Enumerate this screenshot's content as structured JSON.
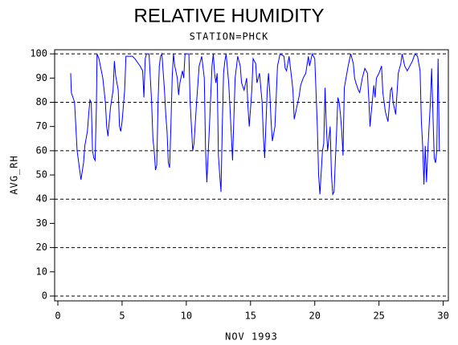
{
  "chart_data": {
    "type": "line",
    "title": "RELATIVE HUMIDITY",
    "subtitle": "STATION=PHCK",
    "x_label": "NOV 1993",
    "y_label": "AVG_RH",
    "xlim": [
      -0.25,
      30.4
    ],
    "ylim": [
      -2,
      101.7
    ],
    "xticks": [
      0,
      5,
      10,
      15,
      20,
      25,
      30
    ],
    "yticks": [
      0,
      10,
      20,
      30,
      40,
      50,
      60,
      70,
      80,
      90,
      100
    ],
    "ygrid": [
      0,
      20,
      40,
      60,
      80,
      100
    ],
    "series": [
      {
        "color": "#0000ff",
        "x": [
          1.0,
          1.05,
          1.3,
          1.5,
          1.7,
          1.8,
          2.0,
          2.1,
          2.3,
          2.4,
          2.5,
          2.6,
          2.7,
          2.8,
          2.9,
          3.0,
          3.05,
          3.2,
          3.5,
          3.7,
          3.8,
          3.9,
          4.1,
          4.3,
          4.4,
          4.5,
          4.7,
          4.8,
          4.9,
          5.0,
          5.2,
          5.3,
          5.5,
          5.8,
          6.0,
          6.4,
          6.6,
          6.7,
          6.8,
          6.9,
          7.1,
          7.3,
          7.4,
          7.5,
          7.6,
          7.7,
          7.8,
          7.9,
          8.0,
          8.1,
          8.3,
          8.4,
          8.5,
          8.6,
          8.7,
          8.8,
          8.9,
          9.0,
          9.1,
          9.3,
          9.4,
          9.5,
          9.7,
          9.8,
          9.9,
          10.2,
          10.3,
          10.4,
          10.5,
          10.6,
          10.8,
          11.0,
          11.2,
          11.4,
          11.5,
          11.6,
          11.8,
          12.0,
          12.1,
          12.2,
          12.3,
          12.4,
          12.5,
          12.6,
          12.7,
          12.8,
          12.9,
          13.0,
          13.1,
          13.3,
          13.4,
          13.6,
          13.8,
          14.0,
          14.2,
          14.3,
          14.5,
          14.7,
          14.8,
          14.9,
          15.1,
          15.2,
          15.4,
          15.5,
          15.7,
          15.9,
          16.0,
          16.1,
          16.3,
          16.4,
          16.5,
          16.6,
          16.7,
          16.9,
          17.1,
          17.3,
          17.6,
          17.7,
          17.8,
          18.0,
          18.2,
          18.3,
          18.4,
          18.6,
          18.8,
          18.9,
          19.1,
          19.3,
          19.5,
          19.6,
          19.8,
          20.0,
          20.2,
          20.3,
          20.4,
          20.6,
          20.7,
          20.8,
          20.9,
          21.0,
          21.2,
          21.3,
          21.4,
          21.5,
          21.7,
          21.8,
          21.9,
          22.0,
          22.1,
          22.2,
          22.3,
          22.6,
          22.8,
          23.0,
          23.1,
          23.2,
          23.4,
          23.5,
          23.7,
          23.9,
          24.1,
          24.2,
          24.3,
          24.4,
          24.6,
          24.7,
          24.8,
          25.0,
          25.2,
          25.3,
          25.5,
          25.7,
          25.9,
          26.0,
          26.1,
          26.3,
          26.5,
          26.7,
          26.8,
          27.0,
          27.2,
          27.4,
          27.6,
          27.8,
          28.0,
          28.2,
          28.3,
          28.4,
          28.5,
          28.6,
          28.7,
          28.8,
          29.0,
          29.1,
          29.2,
          29.3,
          29.4,
          29.5,
          29.6,
          29.7
        ],
        "values": [
          92,
          84,
          80,
          60,
          52,
          48,
          55,
          62,
          68,
          75,
          81,
          80,
          60,
          57,
          56,
          78,
          100,
          98,
          90,
          80,
          70,
          66,
          78,
          85,
          97,
          91,
          85,
          70,
          68,
          72,
          85,
          99,
          99,
          99,
          98,
          95,
          93,
          82,
          98,
          100,
          100,
          80,
          65,
          60,
          52,
          54,
          80,
          95,
          99,
          100,
          85,
          75,
          68,
          55,
          53,
          70,
          90,
          100,
          95,
          90,
          83,
          88,
          93,
          90,
          100,
          100,
          80,
          70,
          60,
          63,
          80,
          95,
          99,
          90,
          60,
          47,
          70,
          95,
          100,
          92,
          88,
          92,
          58,
          50,
          43,
          70,
          92,
          97,
          100,
          88,
          78,
          56,
          90,
          99,
          95,
          88,
          85,
          90,
          78,
          70,
          85,
          98,
          96,
          88,
          92,
          80,
          66,
          57,
          85,
          92,
          84,
          72,
          64,
          70,
          95,
          100,
          99,
          94,
          93,
          99,
          90,
          85,
          73,
          78,
          83,
          87,
          90,
          92,
          99,
          95,
          100,
          98,
          70,
          50,
          42,
          60,
          63,
          86,
          70,
          60,
          70,
          50,
          42,
          43,
          68,
          82,
          80,
          75,
          68,
          58,
          86,
          95,
          100,
          96,
          90,
          88,
          85,
          84,
          90,
          94,
          92,
          82,
          70,
          76,
          87,
          82,
          90,
          92,
          95,
          84,
          76,
          72,
          85,
          86,
          80,
          75,
          92,
          96,
          100,
          95,
          93,
          95,
          97,
          100,
          99,
          93,
          72,
          62,
          46,
          62,
          47,
          60,
          80,
          94,
          75,
          57,
          55,
          60,
          98,
          60
        ]
      }
    ]
  }
}
